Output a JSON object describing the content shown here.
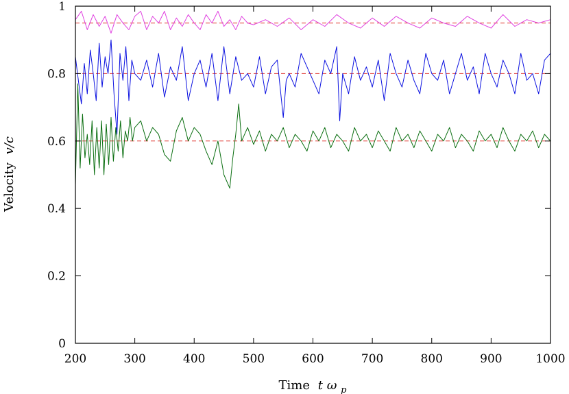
{
  "chart_data": {
    "type": "line",
    "xlabel": "Time tω_p",
    "ylabel": "Velocity v/c",
    "xlabel_text": "Time",
    "xlabel_var": "t",
    "xlabel_omega": "ω",
    "xlabel_sub": "p",
    "ylabel_text": "Velocity",
    "ylabel_var": "v/c",
    "xlim": [
      200,
      1000
    ],
    "ylim": [
      0,
      1
    ],
    "x_ticks": [
      200,
      300,
      400,
      500,
      600,
      700,
      800,
      900,
      1000
    ],
    "y_ticks": [
      0,
      0.2,
      0.4,
      0.6,
      0.8,
      1
    ],
    "y_tick_labels": [
      "0",
      "0.2",
      "0.4",
      "0.6",
      "0.8",
      "1"
    ],
    "grid": false,
    "legend": "none",
    "reference_lines": [
      {
        "y": 0.95,
        "style": "dashed",
        "color": "#e0302a"
      },
      {
        "y": 0.8,
        "style": "dashed",
        "color": "#e0302a"
      },
      {
        "y": 0.6,
        "style": "dashed",
        "color": "#e0302a"
      }
    ],
    "series": [
      {
        "color": "#e040e0",
        "x": [
          200,
          210,
          220,
          230,
          240,
          250,
          260,
          270,
          280,
          290,
          300,
          310,
          320,
          330,
          340,
          350,
          360,
          370,
          380,
          390,
          400,
          410,
          420,
          430,
          440,
          450,
          460,
          470,
          480,
          490,
          500,
          520,
          540,
          560,
          580,
          600,
          620,
          640,
          660,
          680,
          700,
          720,
          740,
          760,
          780,
          800,
          820,
          840,
          860,
          880,
          900,
          920,
          940,
          960,
          980,
          1000
        ],
        "values": [
          0.96,
          0.985,
          0.93,
          0.975,
          0.94,
          0.97,
          0.92,
          0.975,
          0.95,
          0.93,
          0.97,
          0.985,
          0.93,
          0.97,
          0.95,
          0.985,
          0.93,
          0.965,
          0.94,
          0.975,
          0.95,
          0.93,
          0.975,
          0.95,
          0.985,
          0.94,
          0.96,
          0.93,
          0.97,
          0.95,
          0.945,
          0.96,
          0.94,
          0.965,
          0.93,
          0.96,
          0.94,
          0.975,
          0.95,
          0.935,
          0.965,
          0.94,
          0.97,
          0.95,
          0.935,
          0.965,
          0.95,
          0.94,
          0.97,
          0.95,
          0.935,
          0.975,
          0.94,
          0.96,
          0.95,
          0.96
        ]
      },
      {
        "color": "#0a10e0",
        "x": [
          200,
          205,
          210,
          215,
          220,
          225,
          230,
          235,
          240,
          245,
          250,
          255,
          260,
          265,
          270,
          275,
          280,
          285,
          290,
          295,
          300,
          310,
          320,
          330,
          340,
          350,
          360,
          370,
          380,
          390,
          400,
          410,
          420,
          430,
          440,
          450,
          455,
          460,
          470,
          480,
          490,
          500,
          510,
          520,
          530,
          540,
          550,
          555,
          560,
          570,
          580,
          590,
          600,
          610,
          620,
          630,
          640,
          645,
          650,
          660,
          670,
          680,
          690,
          700,
          710,
          720,
          730,
          740,
          750,
          760,
          770,
          780,
          790,
          800,
          810,
          820,
          830,
          840,
          850,
          860,
          870,
          880,
          890,
          900,
          910,
          920,
          930,
          940,
          950,
          960,
          970,
          980,
          990,
          1000
        ],
        "values": [
          0.85,
          0.78,
          0.71,
          0.83,
          0.74,
          0.87,
          0.8,
          0.72,
          0.89,
          0.76,
          0.85,
          0.8,
          0.9,
          0.74,
          0.62,
          0.86,
          0.78,
          0.88,
          0.72,
          0.84,
          0.8,
          0.78,
          0.84,
          0.76,
          0.86,
          0.73,
          0.82,
          0.78,
          0.88,
          0.72,
          0.8,
          0.84,
          0.76,
          0.86,
          0.72,
          0.88,
          0.81,
          0.74,
          0.85,
          0.78,
          0.8,
          0.76,
          0.85,
          0.74,
          0.82,
          0.84,
          0.67,
          0.78,
          0.8,
          0.76,
          0.86,
          0.82,
          0.78,
          0.74,
          0.84,
          0.8,
          0.88,
          0.66,
          0.8,
          0.74,
          0.85,
          0.78,
          0.82,
          0.76,
          0.84,
          0.72,
          0.86,
          0.8,
          0.76,
          0.84,
          0.78,
          0.74,
          0.86,
          0.8,
          0.78,
          0.84,
          0.74,
          0.8,
          0.86,
          0.78,
          0.82,
          0.74,
          0.86,
          0.8,
          0.76,
          0.84,
          0.8,
          0.74,
          0.86,
          0.78,
          0.8,
          0.74,
          0.84,
          0.86
        ]
      },
      {
        "color": "#0a6e10",
        "x": [
          200,
          204,
          208,
          212,
          216,
          220,
          224,
          228,
          232,
          236,
          240,
          244,
          248,
          252,
          256,
          260,
          264,
          268,
          272,
          276,
          280,
          284,
          288,
          292,
          296,
          300,
          310,
          320,
          330,
          340,
          350,
          360,
          370,
          380,
          390,
          400,
          410,
          420,
          430,
          440,
          450,
          460,
          465,
          470,
          475,
          480,
          490,
          500,
          510,
          520,
          530,
          540,
          550,
          560,
          570,
          580,
          590,
          600,
          610,
          620,
          630,
          640,
          650,
          660,
          670,
          680,
          690,
          700,
          710,
          720,
          730,
          740,
          750,
          760,
          770,
          780,
          790,
          800,
          810,
          820,
          830,
          840,
          850,
          860,
          870,
          880,
          890,
          900,
          910,
          920,
          930,
          940,
          950,
          960,
          970,
          980,
          990,
          1000
        ],
        "values": [
          0.47,
          0.77,
          0.52,
          0.68,
          0.55,
          0.62,
          0.53,
          0.66,
          0.5,
          0.64,
          0.52,
          0.66,
          0.5,
          0.65,
          0.53,
          0.67,
          0.54,
          0.64,
          0.57,
          0.66,
          0.55,
          0.63,
          0.6,
          0.67,
          0.6,
          0.64,
          0.66,
          0.6,
          0.64,
          0.62,
          0.56,
          0.54,
          0.63,
          0.67,
          0.6,
          0.64,
          0.62,
          0.57,
          0.53,
          0.6,
          0.5,
          0.46,
          0.55,
          0.62,
          0.71,
          0.6,
          0.64,
          0.59,
          0.63,
          0.57,
          0.62,
          0.6,
          0.64,
          0.58,
          0.62,
          0.6,
          0.57,
          0.63,
          0.6,
          0.64,
          0.58,
          0.62,
          0.6,
          0.57,
          0.64,
          0.6,
          0.62,
          0.58,
          0.63,
          0.6,
          0.57,
          0.64,
          0.6,
          0.62,
          0.58,
          0.63,
          0.6,
          0.57,
          0.62,
          0.6,
          0.64,
          0.58,
          0.62,
          0.6,
          0.57,
          0.63,
          0.6,
          0.62,
          0.58,
          0.64,
          0.6,
          0.57,
          0.62,
          0.6,
          0.63,
          0.58,
          0.62,
          0.6
        ]
      }
    ]
  }
}
